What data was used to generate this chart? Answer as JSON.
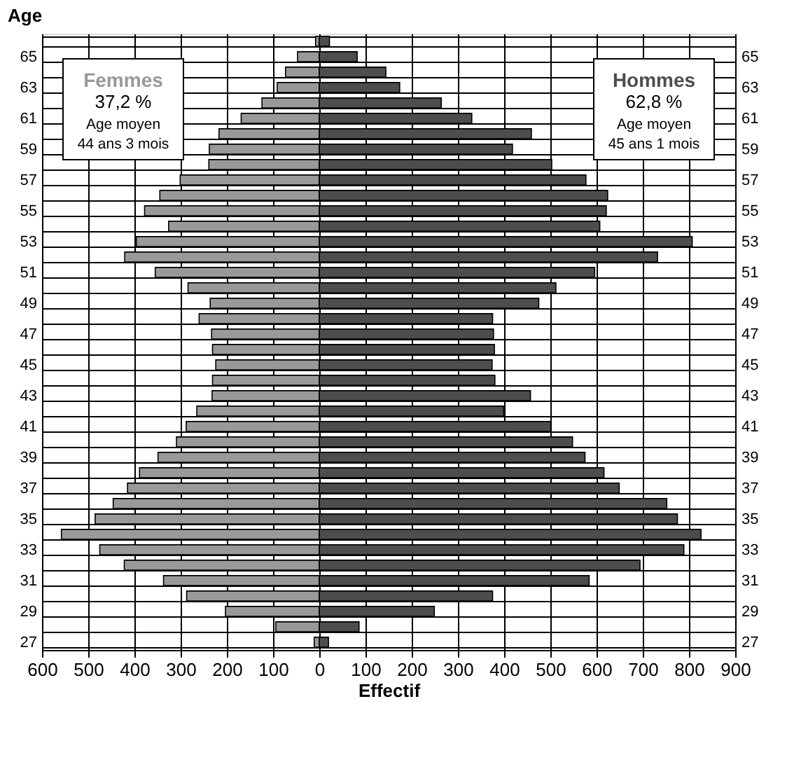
{
  "chart_data": {
    "type": "bar",
    "orientation": "horizontal",
    "stacked": true,
    "ylabel": "Age",
    "xlabel": "Effectif",
    "categories": [
      null,
      "65",
      null,
      "63",
      null,
      "61",
      null,
      "59",
      null,
      "57",
      null,
      "55",
      null,
      "53",
      null,
      "51",
      null,
      "49",
      null,
      "47",
      null,
      "45",
      null,
      "43",
      null,
      "41",
      null,
      "39",
      null,
      "37",
      null,
      "35",
      null,
      "33",
      null,
      "31",
      null,
      "29",
      null,
      "27"
    ],
    "series": [
      {
        "name": "Femmes",
        "color": "#999999",
        "values": [
          -8,
          -47,
          -73,
          -91,
          -124,
          -169,
          -217,
          -238,
          -239,
          -301,
          -345,
          -378,
          -326,
          -396,
          -421,
          -355,
          -284,
          -236,
          -260,
          -233,
          -231,
          -224,
          -231,
          -232,
          -265,
          -288,
          -309,
          -349,
          -389,
          -415,
          -446,
          -485,
          -558,
          -475,
          -422,
          -337,
          -287,
          -203,
          -94,
          -11
        ]
      },
      {
        "name": "Hommes",
        "color": "#4d4d4d",
        "values": [
          22,
          82,
          144,
          174,
          264,
          330,
          459,
          418,
          503,
          577,
          624,
          621,
          607,
          807,
          732,
          596,
          512,
          475,
          375,
          377,
          379,
          374,
          380,
          457,
          399,
          501,
          548,
          575,
          616,
          649,
          752,
          775,
          826,
          789,
          694,
          584,
          375,
          249,
          86,
          20
        ]
      }
    ],
    "xlim": [
      -600,
      900
    ],
    "xticks": [
      {
        "value": -600,
        "label": "600"
      },
      {
        "value": -500,
        "label": "500"
      },
      {
        "value": -400,
        "label": "400"
      },
      {
        "value": -300,
        "label": "300"
      },
      {
        "value": -200,
        "label": "200"
      },
      {
        "value": -100,
        "label": "100"
      },
      0,
      100,
      200,
      300,
      400,
      500,
      600,
      700,
      800,
      900
    ],
    "annotations": [
      "37,2 %",
      "Age moyen",
      "44 ans 3 mois",
      "62,8 %",
      "Age moyen",
      "45 ans 1 mois"
    ],
    "grid": true,
    "legend": false
  }
}
